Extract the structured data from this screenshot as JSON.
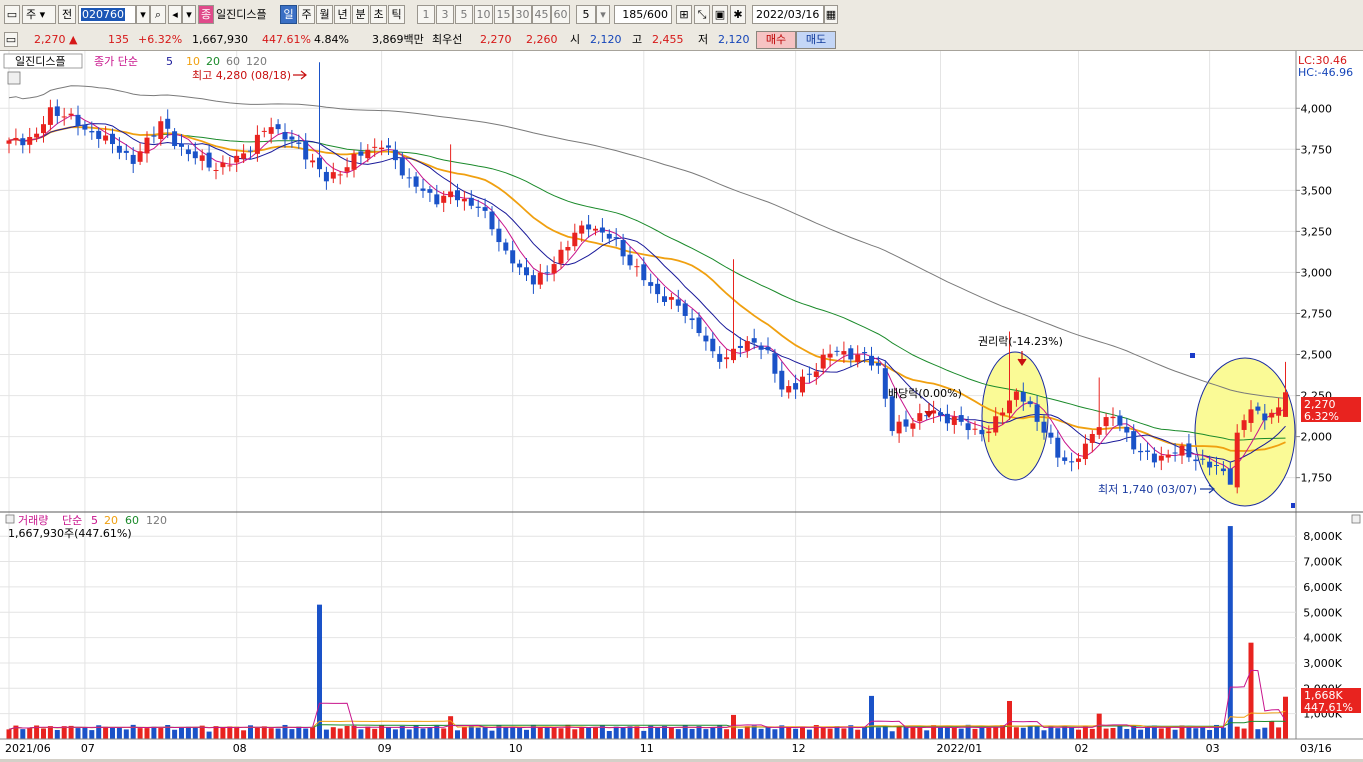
{
  "toolbar": {
    "market": "주",
    "prev_label": "전",
    "code": "020760",
    "stock_name": "일진디스플",
    "period_badge": "종",
    "periods": [
      "일",
      "주",
      "월",
      "년",
      "분",
      "초",
      "틱"
    ],
    "minutes": [
      "1",
      "3",
      "5",
      "10",
      "15",
      "30",
      "45",
      "60"
    ],
    "interval": "5",
    "count": "185",
    "max_count": "600",
    "date": "2022/03/16"
  },
  "quote": {
    "price": "2,270",
    "change": "135",
    "change_pct": "+6.32%",
    "volume": "1,667,930",
    "volume_ratio": "447.61%",
    "turnover": "4.84%",
    "amount": "3,869백만",
    "best_ask_label": "최우선",
    "best_ask": "2,270",
    "best_bid": "2,260",
    "open_label": "시",
    "open": "2,120",
    "high_label": "고",
    "high": "2,455",
    "low_label": "저",
    "low": "2,120",
    "buy_label": "매수",
    "sell_label": "매도"
  },
  "price_panel": {
    "title": "일진디스플",
    "legend_prefix": "종가 단순",
    "ma_labels": [
      "5",
      "10",
      "20",
      "60",
      "120"
    ],
    "lc": "LC:30.46",
    "hc": "HC:-46.96",
    "current_price_tag": "2,270",
    "current_pct_tag": "6.32%",
    "high_annotation": "최고 4,280 (08/18)",
    "low_annotation": "최저 1,740 (03/07)",
    "rights_annotation": "권리락(-14.23%)",
    "dividend_annotation": "배당락(0.00%)"
  },
  "volume_panel": {
    "title": "거래량",
    "legend_prefix": "단순",
    "ma_labels": [
      "5",
      "20",
      "60",
      "120"
    ],
    "value_text": "1,667,930주(447.61%)",
    "current_tag": "1,668K",
    "current_pct_tag": "447.61%"
  },
  "colors": {
    "up": "#e8231f",
    "down": "#1a52c8",
    "ma5": "#c8148c",
    "ma10": "#1a1a9a",
    "ma20": "#f0a010",
    "ma60": "#1a8a2a",
    "ma120": "#7a7a7a",
    "highlight": "#fafa96"
  },
  "chart_data": {
    "type": "candlestick",
    "y_ticks": [
      1750,
      2000,
      2250,
      2500,
      2750,
      3000,
      3250,
      3500,
      3750,
      4000
    ],
    "y_tick_labels": [
      "1,750",
      "2,000",
      "2,250",
      "2,500",
      "2,750",
      "3,000",
      "3,250",
      "3,500",
      "3,750",
      "4,000"
    ],
    "ylim": [
      1620,
      4300
    ],
    "x_labels": [
      {
        "i": 0,
        "label": "2021/06"
      },
      {
        "i": 11,
        "label": "07"
      },
      {
        "i": 33,
        "label": "08"
      },
      {
        "i": 54,
        "label": "09"
      },
      {
        "i": 73,
        "label": "10"
      },
      {
        "i": 92,
        "label": "11"
      },
      {
        "i": 114,
        "label": "12"
      },
      {
        "i": 135,
        "label": "2022/01"
      },
      {
        "i": 155,
        "label": "02"
      },
      {
        "i": 174,
        "label": "03"
      },
      {
        "i": 186,
        "label": "03/16"
      }
    ],
    "vol_ticks": [
      1000,
      2000,
      3000,
      4000,
      5000,
      6000,
      7000,
      8000
    ],
    "vol_tick_labels": [
      "1,000K",
      "2,000K",
      "3,000K",
      "4,000K",
      "5,000K",
      "6,000K",
      "7,000K",
      "8,000K"
    ],
    "vol_ylim": [
      0,
      8600
    ],
    "knots": [
      [
        0,
        3790
      ],
      [
        4,
        3830
      ],
      [
        6,
        3990
      ],
      [
        8,
        3960
      ],
      [
        12,
        3850
      ],
      [
        16,
        3760
      ],
      [
        18,
        3660
      ],
      [
        20,
        3810
      ],
      [
        22,
        3910
      ],
      [
        24,
        3790
      ],
      [
        27,
        3700
      ],
      [
        30,
        3640
      ],
      [
        32,
        3660
      ],
      [
        34,
        3730
      ],
      [
        36,
        3810
      ],
      [
        38,
        3900
      ],
      [
        40,
        3830
      ],
      [
        42,
        3760
      ],
      [
        44,
        3680
      ],
      [
        46,
        3560
      ],
      [
        48,
        3620
      ],
      [
        50,
        3690
      ],
      [
        52,
        3750
      ],
      [
        54,
        3780
      ],
      [
        56,
        3680
      ],
      [
        58,
        3560
      ],
      [
        60,
        3490
      ],
      [
        62,
        3450
      ],
      [
        64,
        3470
      ],
      [
        66,
        3440
      ],
      [
        68,
        3400
      ],
      [
        70,
        3280
      ],
      [
        72,
        3120
      ],
      [
        74,
        3010
      ],
      [
        76,
        2960
      ],
      [
        78,
        2990
      ],
      [
        80,
        3130
      ],
      [
        82,
        3230
      ],
      [
        84,
        3290
      ],
      [
        86,
        3240
      ],
      [
        88,
        3180
      ],
      [
        90,
        3060
      ],
      [
        92,
        2960
      ],
      [
        94,
        2870
      ],
      [
        96,
        2820
      ],
      [
        98,
        2760
      ],
      [
        100,
        2640
      ],
      [
        102,
        2500
      ],
      [
        104,
        2480
      ],
      [
        106,
        2550
      ],
      [
        108,
        2590
      ],
      [
        110,
        2490
      ],
      [
        112,
        2300
      ],
      [
        114,
        2300
      ],
      [
        116,
        2380
      ],
      [
        118,
        2480
      ],
      [
        120,
        2520
      ],
      [
        122,
        2500
      ],
      [
        124,
        2480
      ],
      [
        126,
        2430
      ],
      [
        128,
        2040
      ],
      [
        130,
        2080
      ],
      [
        132,
        2120
      ],
      [
        134,
        2150
      ],
      [
        136,
        2110
      ],
      [
        138,
        2080
      ],
      [
        140,
        2040
      ],
      [
        142,
        2020
      ],
      [
        144,
        2180
      ],
      [
        146,
        2260
      ],
      [
        148,
        2180
      ],
      [
        150,
        2040
      ],
      [
        152,
        1880
      ],
      [
        154,
        1840
      ],
      [
        156,
        1930
      ],
      [
        158,
        2090
      ],
      [
        160,
        2120
      ],
      [
        162,
        2010
      ],
      [
        164,
        1900
      ],
      [
        166,
        1860
      ],
      [
        168,
        1900
      ],
      [
        170,
        1910
      ],
      [
        172,
        1870
      ],
      [
        174,
        1820
      ],
      [
        176,
        1790
      ],
      [
        177,
        1740
      ],
      [
        178,
        2000
      ],
      [
        180,
        2180
      ],
      [
        182,
        2120
      ],
      [
        184,
        2150
      ],
      [
        185,
        2270
      ]
    ],
    "vol_spikes": [
      [
        45,
        5300
      ],
      [
        64,
        900
      ],
      [
        105,
        950
      ],
      [
        125,
        1700
      ],
      [
        145,
        1500
      ],
      [
        158,
        1000
      ],
      [
        177,
        8400
      ],
      [
        180,
        3800
      ],
      [
        183,
        700
      ],
      [
        185,
        1668
      ]
    ]
  }
}
